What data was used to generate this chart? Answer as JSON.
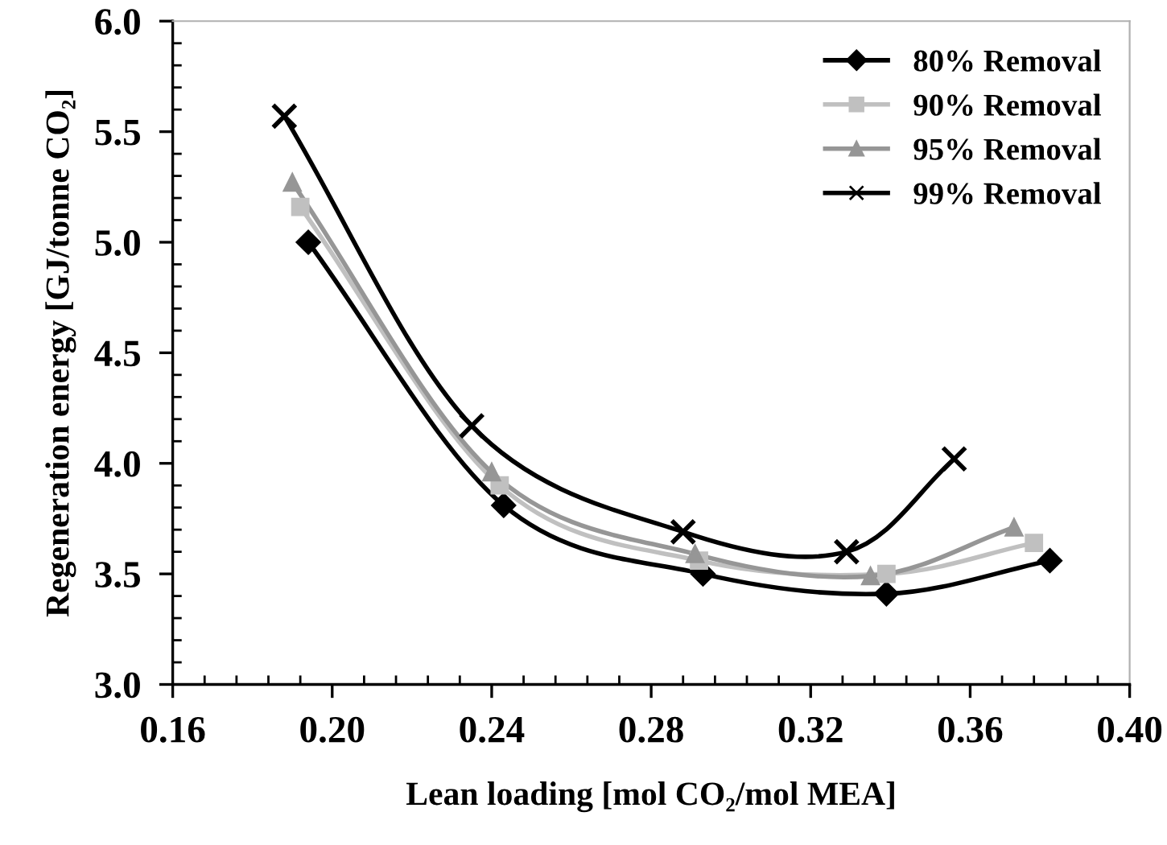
{
  "chart_data": {
    "type": "line",
    "xlabel": "Lean loading [mol CO₂/mol MEA]",
    "ylabel": "Regeneration energy [GJ/tonne CO₂]",
    "xlim": [
      0.16,
      0.4
    ],
    "ylim": [
      3.0,
      6.0
    ],
    "xticks": [
      {
        "value": 0.16,
        "label": "0.16"
      },
      {
        "value": 0.2,
        "label": "0.20"
      },
      {
        "value": 0.24,
        "label": "0.24"
      },
      {
        "value": 0.28,
        "label": "0.28"
      },
      {
        "value": 0.32,
        "label": "0.32"
      },
      {
        "value": 0.36,
        "label": "0.36"
      },
      {
        "value": 0.4,
        "label": "0.40"
      }
    ],
    "yticks": [
      {
        "value": 3.0,
        "label": "3.0"
      },
      {
        "value": 3.5,
        "label": "3.5"
      },
      {
        "value": 4.0,
        "label": "4.0"
      },
      {
        "value": 4.5,
        "label": "4.5"
      },
      {
        "value": 5.0,
        "label": "5.0"
      },
      {
        "value": 5.5,
        "label": "5.5"
      },
      {
        "value": 6.0,
        "label": "6.0"
      }
    ],
    "grid": false,
    "legend": "top right",
    "line_style": "solid",
    "series": [
      {
        "name": "80% Removal",
        "color": "#000000",
        "marker": "diamond",
        "x": [
          0.194,
          0.243,
          0.293,
          0.339,
          0.38
        ],
        "values": [
          5.0,
          3.81,
          3.5,
          3.41,
          3.56
        ]
      },
      {
        "name": "90% Removal",
        "color": "#c0c0c0",
        "marker": "square",
        "x": [
          0.192,
          0.242,
          0.292,
          0.339,
          0.376
        ],
        "values": [
          5.16,
          3.9,
          3.56,
          3.5,
          3.64
        ]
      },
      {
        "name": "95% Removal",
        "color": "#969696",
        "marker": "triangle",
        "x": [
          0.19,
          0.24,
          0.291,
          0.335,
          0.371
        ],
        "values": [
          5.27,
          3.96,
          3.59,
          3.49,
          3.71
        ]
      },
      {
        "name": "99% Removal",
        "color": "#000000",
        "marker": "cross",
        "x": [
          0.188,
          0.235,
          0.288,
          0.329,
          0.356
        ],
        "values": [
          5.57,
          4.17,
          3.69,
          3.6,
          4.02
        ]
      }
    ]
  }
}
